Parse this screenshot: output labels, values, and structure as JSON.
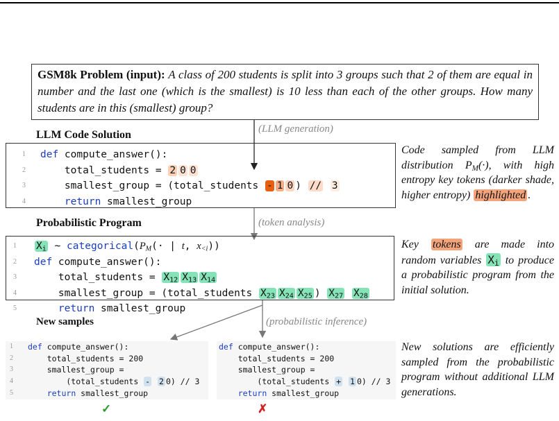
{
  "problem": {
    "label": "GSM8k Problem (input):",
    "text": "A class of 200 students is split into 3 groups such that 2 of them are equal in number and the last one (which is the smallest) is 10 less than each of the other groups. How many students are in this (smallest) group?"
  },
  "code_solution": {
    "title": "LLM Code Solution",
    "arrow_label": "(LLM generation)",
    "lines": [
      {
        "num": "1",
        "segs": [
          {
            "t": "def",
            "fg": "#1a3dc1"
          },
          " compute_answer():"
        ]
      },
      {
        "num": "2",
        "segs": [
          "    total_students = ",
          {
            "t": "2",
            "bg": "#fbd0b6"
          },
          {
            "t": "0",
            "bg": "#fde3d3"
          },
          {
            "t": "0",
            "bg": "#fde3d3"
          }
        ]
      },
      {
        "num": "3",
        "segs": [
          "    smallest_group = (total_students ",
          {
            "t": "-",
            "bg": "#e8600e"
          },
          {
            "t": "1",
            "bg": "#f6ad84"
          },
          {
            "t": "0",
            "bg": "#fbd5bf"
          },
          ") ",
          {
            "t": "//",
            "bg": "#fcdcc9"
          },
          " ",
          {
            "t": "3",
            "bg": "#fdece2"
          }
        ]
      },
      {
        "num": "4",
        "segs": [
          "    ",
          {
            "t": "return",
            "fg": "#1a3dc1"
          },
          " smallest_group"
        ]
      }
    ],
    "note": [
      "Code sampled from LLM distribution ",
      {
        "t": "P",
        "sub": "M",
        "italic": true
      },
      "(·), with high entropy key tokens (darker shade, higher entropy) ",
      {
        "t": "highlighted",
        "bg": "#f4a47a"
      },
      "."
    ]
  },
  "program": {
    "title": "Probabilistic Program",
    "arrow_label": "(token analysis)",
    "lines": [
      {
        "num": "1",
        "segs": [
          {
            "t": "X",
            "sub": "i",
            "bg": "#86e3b8"
          },
          " ∼ ",
          {
            "t": "categorical",
            "fg": "#1a3dc1"
          },
          "(",
          {
            "t": "P",
            "sub": "M",
            "italic": true
          },
          "(· | ",
          {
            "t": "t",
            "italic": true
          },
          ", ",
          {
            "t": "x",
            "sub": "<i",
            "italic": true
          },
          "))"
        ]
      },
      {
        "num": "2",
        "segs": [
          {
            "t": "def",
            "fg": "#1a3dc1"
          },
          " compute_answer():"
        ]
      },
      {
        "num": "3",
        "segs": [
          "    total_students = ",
          {
            "t": "X",
            "sub": "12",
            "bg": "#86e3b8"
          },
          {
            "t": "X",
            "sub": "13",
            "bg": "#86e3b8"
          },
          {
            "t": "X",
            "sub": "14",
            "bg": "#86e3b8"
          }
        ]
      },
      {
        "num": "4",
        "segs": [
          "    smallest_group = (total_students ",
          {
            "t": "X",
            "sub": "23",
            "bg": "#86e3b8"
          },
          {
            "t": "X",
            "sub": "24",
            "bg": "#86e3b8"
          },
          {
            "t": "X",
            "sub": "25",
            "bg": "#86e3b8"
          },
          ") ",
          {
            "t": "X",
            "sub": "27",
            "bg": "#86e3b8"
          },
          " ",
          {
            "t": "X",
            "sub": "28",
            "bg": "#86e3b8"
          }
        ]
      },
      {
        "num": "5",
        "segs": [
          "    ",
          {
            "t": "return",
            "fg": "#1a3dc1"
          },
          " smallest_group"
        ]
      }
    ],
    "note": [
      "Key ",
      {
        "t": "tokens",
        "bg": "#f4a47a"
      },
      " are made into random variables ",
      {
        "t": "X",
        "sub": "i",
        "bg": "#86e3b8",
        "code": true
      },
      " to produce a probabilistic program from the initial solution."
    ]
  },
  "new_samples": {
    "title": "New samples",
    "arrow_label": "(probabilistic inference)",
    "samples": [
      {
        "verdict": "✓",
        "verdict_color": "#2a9a2a",
        "lines": [
          {
            "num": "1",
            "segs": [
              {
                "t": "def",
                "fg": "#1a3dc1"
              },
              " compute_answer():"
            ]
          },
          {
            "num": "2",
            "segs": [
              "    total_students = 200"
            ]
          },
          {
            "num": "3",
            "segs": [
              "    smallest_group ="
            ]
          },
          {
            "num": "4",
            "segs": [
              "        (total_students ",
              {
                "t": "-",
                "bg": "#cfe0ee"
              },
              " ",
              {
                "t": "2",
                "bg": "#cfe0ee"
              },
              "0) // 3"
            ]
          },
          {
            "num": "5",
            "segs": [
              "    ",
              {
                "t": "return",
                "fg": "#1a3dc1"
              },
              " smallest_group"
            ]
          }
        ]
      },
      {
        "verdict": "✗",
        "verdict_color": "#d42020",
        "lines": [
          {
            "num": "1",
            "segs": [
              {
                "t": "def",
                "fg": "#1a3dc1"
              },
              " compute_answer():"
            ]
          },
          {
            "num": "2",
            "segs": [
              "    total_students = 200"
            ]
          },
          {
            "num": "3",
            "segs": [
              "    smallest_group ="
            ]
          },
          {
            "num": "4",
            "segs": [
              "        (total_students ",
              {
                "t": "+",
                "bg": "#cfe0ee"
              },
              " ",
              {
                "t": "1",
                "bg": "#cfe0ee"
              },
              "0) // 3"
            ]
          },
          {
            "num": "5",
            "segs": [
              "    ",
              {
                "t": "return",
                "fg": "#1a3dc1"
              },
              " smallest_group"
            ]
          }
        ]
      }
    ],
    "note": [
      "New solutions are efficiently sampled from the probabilistic program without additional LLM generations."
    ]
  }
}
